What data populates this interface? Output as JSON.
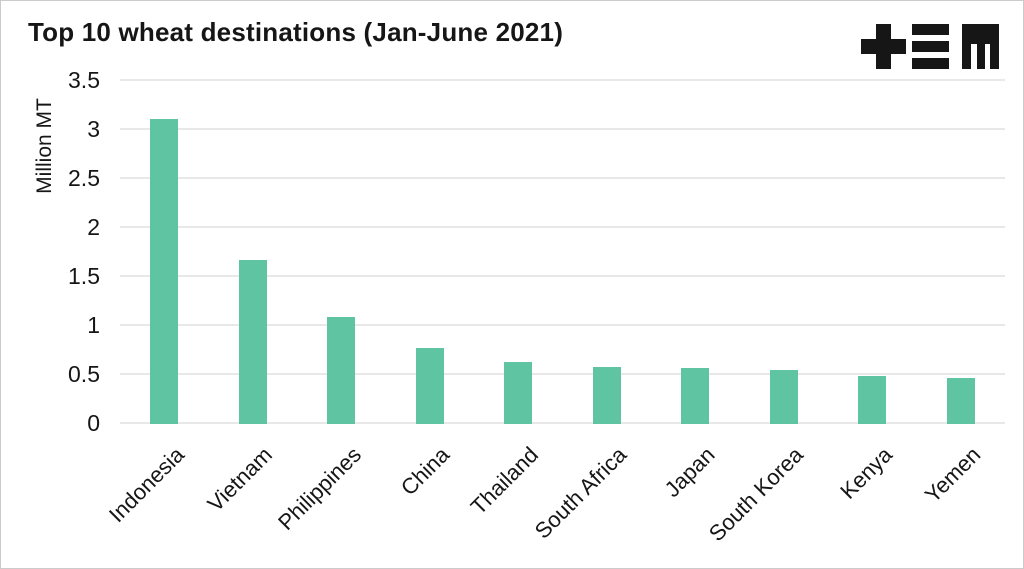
{
  "header": {
    "title": "Top 10 wheat destinations (Jan-June 2021)",
    "logo": {
      "name": "tem-logo",
      "glyphs": [
        "plus",
        "triple-bars",
        "m"
      ]
    }
  },
  "chart_data": {
    "type": "bar",
    "title": "Top 10 wheat destinations (Jan-June 2021)",
    "categories": [
      "Indonesia",
      "Vietnam",
      "Philippines",
      "China",
      "Thailand",
      "South Africa",
      "Japan",
      "South Korea",
      "Kenya",
      "Yemen"
    ],
    "values": [
      3.1,
      1.66,
      1.08,
      0.77,
      0.62,
      0.57,
      0.56,
      0.54,
      0.48,
      0.46
    ],
    "xlabel": "",
    "ylabel": "Million MT",
    "ylim": [
      0,
      3.5
    ],
    "ytick_labels": [
      "0",
      "0.5",
      "1",
      "1.5",
      "2",
      "2.5",
      "3",
      "3.5"
    ],
    "grid": true,
    "legend": null,
    "x_label_rotation_deg": -45,
    "colors": {
      "bar": "#5ec4a2",
      "grid": "#e8e8e8",
      "text": "#161616",
      "logo": "#161616",
      "background": "#ffffff",
      "border": "#cbcbcb"
    }
  }
}
